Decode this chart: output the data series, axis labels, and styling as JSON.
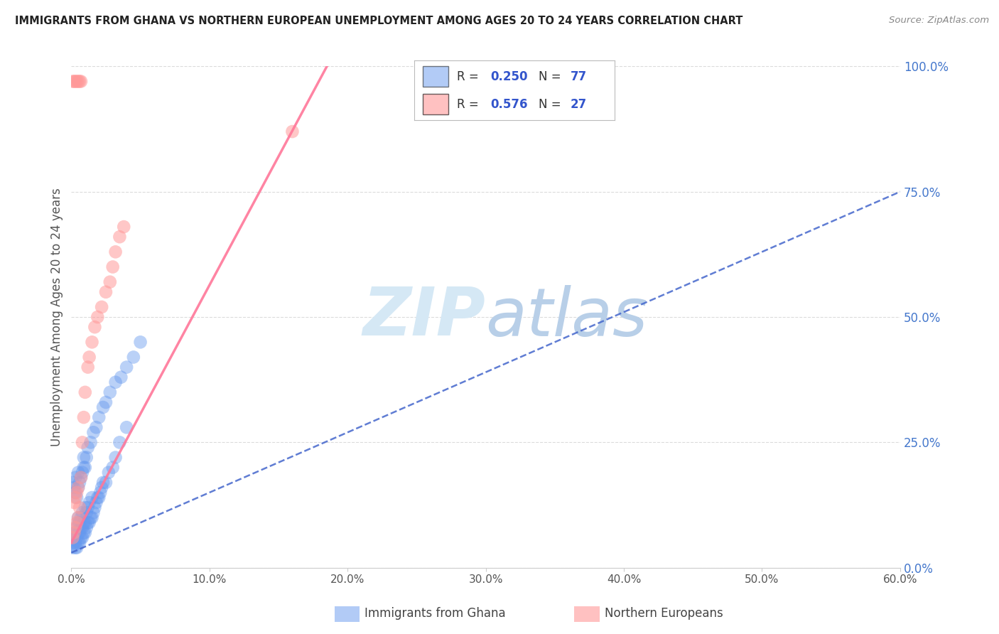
{
  "title": "IMMIGRANTS FROM GHANA VS NORTHERN EUROPEAN UNEMPLOYMENT AMONG AGES 20 TO 24 YEARS CORRELATION CHART",
  "source": "Source: ZipAtlas.com",
  "ylabel": "Unemployment Among Ages 20 to 24 years",
  "xlim": [
    0.0,
    0.6
  ],
  "ylim": [
    0.0,
    1.0
  ],
  "xticks": [
    0.0,
    0.1,
    0.2,
    0.3,
    0.4,
    0.5,
    0.6
  ],
  "xticklabels": [
    "0.0%",
    "10.0%",
    "20.0%",
    "30.0%",
    "40.0%",
    "50.0%",
    "60.0%"
  ],
  "yticks": [
    0.0,
    0.25,
    0.5,
    0.75,
    1.0
  ],
  "yticklabels_right": [
    "0.0%",
    "25.0%",
    "50.0%",
    "75.0%",
    "100.0%"
  ],
  "ghana_color": "#6699ee",
  "northern_color": "#ff9999",
  "ghana_R": 0.25,
  "ghana_N": 77,
  "northern_R": 0.576,
  "northern_N": 27,
  "ghana_scatter_x": [
    0.001,
    0.002,
    0.002,
    0.003,
    0.003,
    0.003,
    0.004,
    0.004,
    0.004,
    0.005,
    0.005,
    0.005,
    0.005,
    0.006,
    0.006,
    0.006,
    0.007,
    0.007,
    0.007,
    0.008,
    0.008,
    0.008,
    0.009,
    0.009,
    0.01,
    0.01,
    0.01,
    0.011,
    0.011,
    0.012,
    0.012,
    0.013,
    0.013,
    0.014,
    0.015,
    0.015,
    0.016,
    0.017,
    0.018,
    0.019,
    0.02,
    0.021,
    0.022,
    0.023,
    0.025,
    0.027,
    0.03,
    0.032,
    0.035,
    0.04,
    0.001,
    0.002,
    0.003,
    0.003,
    0.004,
    0.005,
    0.005,
    0.006,
    0.007,
    0.008,
    0.009,
    0.009,
    0.01,
    0.011,
    0.012,
    0.014,
    0.016,
    0.018,
    0.02,
    0.023,
    0.025,
    0.028,
    0.032,
    0.036,
    0.04,
    0.045,
    0.05
  ],
  "ghana_scatter_y": [
    0.04,
    0.05,
    0.06,
    0.04,
    0.05,
    0.07,
    0.04,
    0.06,
    0.08,
    0.05,
    0.07,
    0.09,
    0.1,
    0.05,
    0.07,
    0.09,
    0.06,
    0.08,
    0.1,
    0.06,
    0.08,
    0.11,
    0.07,
    0.09,
    0.07,
    0.09,
    0.12,
    0.08,
    0.11,
    0.09,
    0.12,
    0.09,
    0.13,
    0.1,
    0.1,
    0.14,
    0.11,
    0.12,
    0.13,
    0.14,
    0.14,
    0.15,
    0.16,
    0.17,
    0.17,
    0.19,
    0.2,
    0.22,
    0.25,
    0.28,
    0.17,
    0.16,
    0.15,
    0.18,
    0.14,
    0.16,
    0.19,
    0.17,
    0.18,
    0.19,
    0.2,
    0.22,
    0.2,
    0.22,
    0.24,
    0.25,
    0.27,
    0.28,
    0.3,
    0.32,
    0.33,
    0.35,
    0.37,
    0.38,
    0.4,
    0.42,
    0.45
  ],
  "northern_scatter_x": [
    0.001,
    0.002,
    0.002,
    0.003,
    0.003,
    0.004,
    0.004,
    0.005,
    0.005,
    0.006,
    0.007,
    0.008,
    0.009,
    0.01,
    0.012,
    0.013,
    0.015,
    0.017,
    0.019,
    0.022,
    0.025,
    0.028,
    0.03,
    0.032,
    0.035,
    0.038,
    0.16
  ],
  "northern_scatter_y": [
    0.06,
    0.07,
    0.13,
    0.08,
    0.14,
    0.09,
    0.15,
    0.1,
    0.16,
    0.12,
    0.18,
    0.25,
    0.3,
    0.35,
    0.4,
    0.42,
    0.45,
    0.48,
    0.5,
    0.52,
    0.55,
    0.57,
    0.6,
    0.63,
    0.66,
    0.68,
    0.87
  ],
  "northern_top_x": [
    0.001,
    0.002,
    0.003,
    0.004,
    0.005,
    0.006,
    0.007
  ],
  "northern_top_y": [
    0.97,
    0.97,
    0.97,
    0.97,
    0.97,
    0.97,
    0.97
  ],
  "background_color": "#ffffff",
  "grid_color": "#cccccc",
  "title_color": "#222222",
  "axis_label_color": "#555555",
  "tick_color": "#555555",
  "right_tick_color": "#4477cc",
  "legend_R_color": "#3355cc",
  "watermark_color": "#d5e8f5",
  "ghana_line_x": [
    0.0,
    0.6
  ],
  "ghana_line_y": [
    0.03,
    0.75
  ],
  "northern_line_x": [
    0.0,
    0.185
  ],
  "northern_line_y": [
    0.05,
    1.0
  ],
  "ghana_line_color": "#4466cc",
  "northern_line_color": "#ff7799"
}
